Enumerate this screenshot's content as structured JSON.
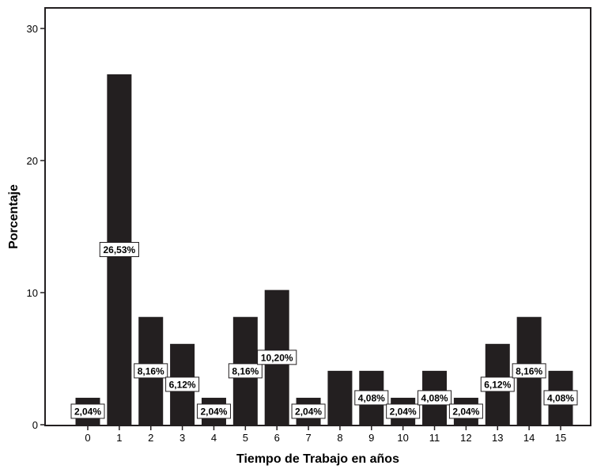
{
  "chart_data": {
    "type": "bar",
    "title": "",
    "xlabel": "Tiempo de Trabajo en años",
    "ylabel": "Porcentaje",
    "ylim": [
      0,
      32
    ],
    "yticks": [
      0,
      10,
      20,
      30
    ],
    "grid": false,
    "bar_color": "#231f20",
    "categories": [
      "0",
      "1",
      "2",
      "3",
      "4",
      "5",
      "6",
      "7",
      "8",
      "9",
      "10",
      "11",
      "12",
      "13",
      "14",
      "15"
    ],
    "values": [
      2.04,
      26.53,
      8.16,
      6.12,
      2.04,
      8.16,
      10.2,
      2.04,
      4.08,
      4.08,
      2.04,
      4.08,
      2.04,
      6.12,
      8.16,
      4.08
    ],
    "data_labels": [
      "2,04%",
      "26,53%",
      "8,16%",
      "6,12%",
      "2,04%",
      "8,16%",
      "10,20%",
      "2,04%",
      "",
      "4,08%",
      "2,04%",
      "4,08%",
      "2,04%",
      "6,12%",
      "8,16%",
      "4,08%"
    ]
  }
}
